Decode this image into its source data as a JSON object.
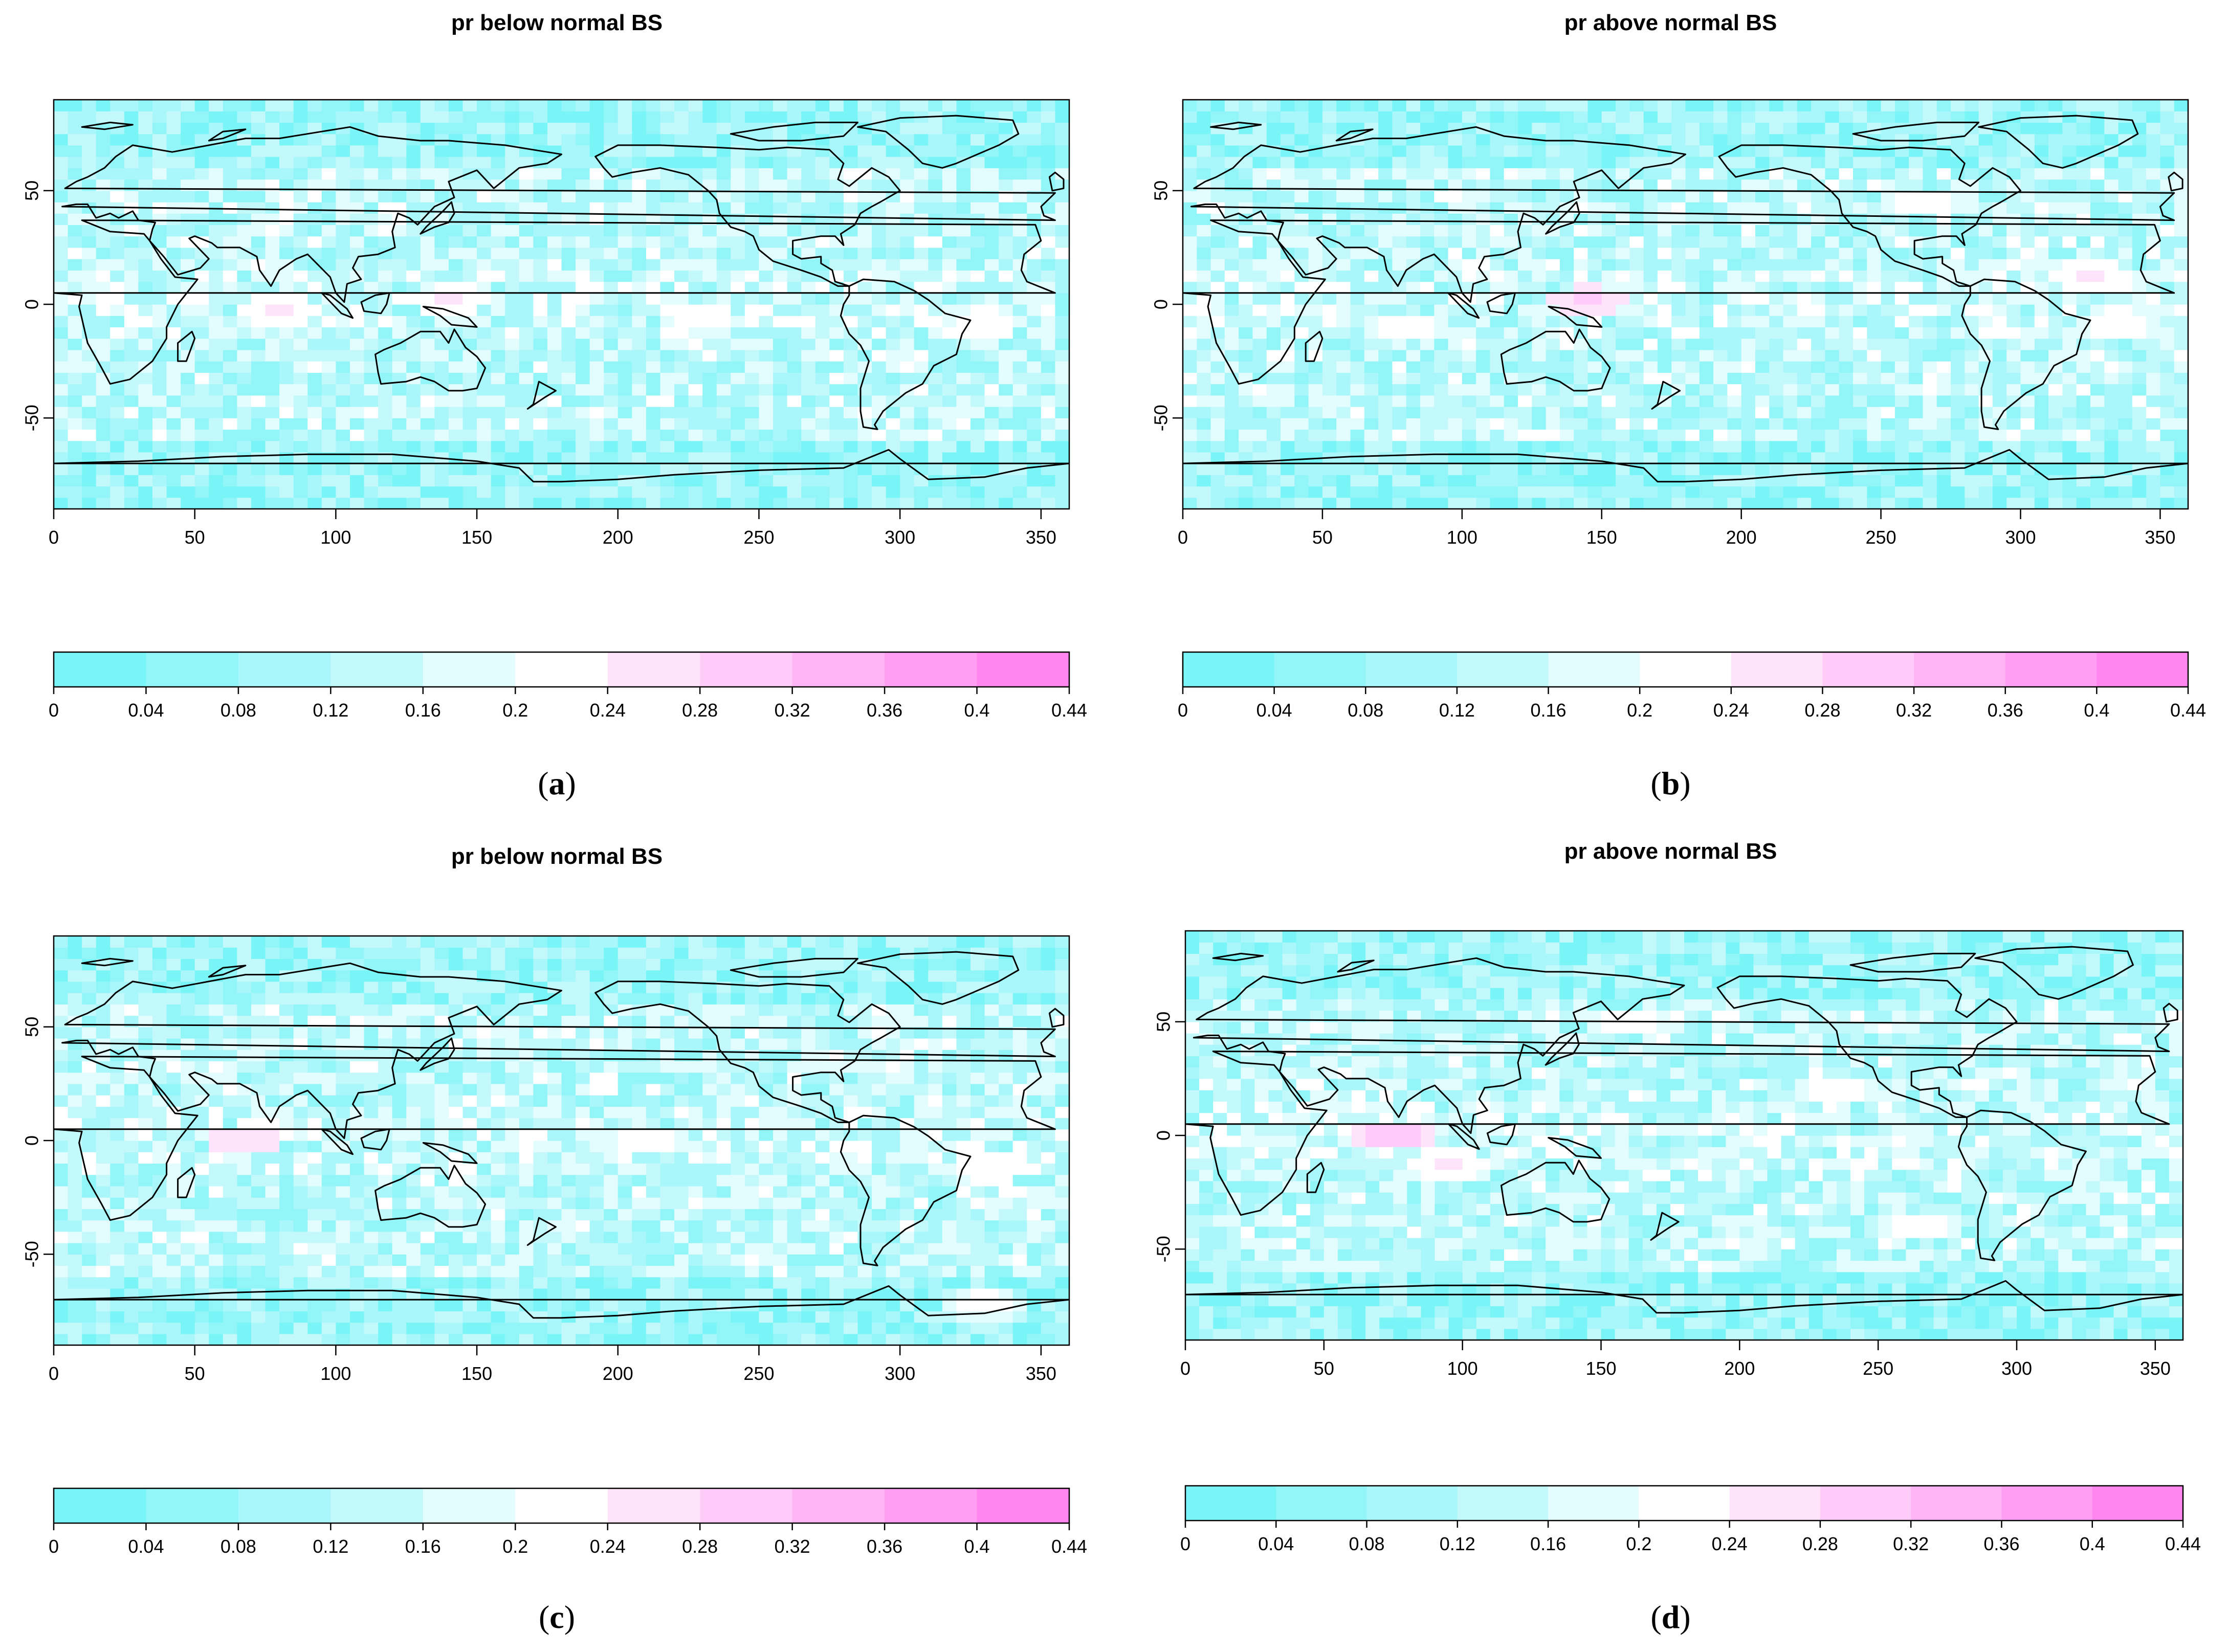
{
  "figure": {
    "colors": {
      "bins": [
        "#79f5f8",
        "#92f6f9",
        "#a9f7fa",
        "#c4f9fb",
        "#e3fcfd",
        "#ffffff",
        "#ffe3fb",
        "#ffcbf8",
        "#ffb4f5",
        "#ff9ef2",
        "#ff86ef"
      ],
      "coastline": "#000000",
      "frame": "#000000"
    }
  },
  "chart_data": [
    {
      "type": "heatmap",
      "panel_label": "a",
      "title": "pr below normal BS",
      "xlabel": "",
      "ylabel": "",
      "xlim": [
        0,
        360
      ],
      "ylim": [
        -90,
        90
      ],
      "x_ticks": [
        0,
        50,
        100,
        150,
        200,
        250,
        300,
        350
      ],
      "y_ticks": [
        -50,
        0,
        50
      ],
      "colorbar": {
        "breaks": [
          0,
          0.04,
          0.08,
          0.12,
          0.16,
          0.2,
          0.24,
          0.28,
          0.32,
          0.36,
          0.4,
          0.44
        ],
        "tick_labels": [
          "0",
          "0.04",
          "0.08",
          "0.12",
          "0.16",
          "0.2",
          "0.24",
          "0.28",
          "0.32",
          "0.36",
          "0.4",
          "0.44"
        ]
      },
      "features": [
        {
          "lon": 80,
          "lat": -3,
          "value": 0.27
        },
        {
          "lon": 140,
          "lat": 1,
          "value": 0.26
        },
        {
          "lon": 230,
          "lat": -6,
          "value": 0.25
        },
        {
          "lon": 330,
          "lat": -8,
          "value": 0.25
        }
      ]
    },
    {
      "type": "heatmap",
      "panel_label": "b",
      "title": "pr above normal BS",
      "xlabel": "",
      "ylabel": "",
      "xlim": [
        0,
        360
      ],
      "ylim": [
        -90,
        90
      ],
      "x_ticks": [
        0,
        50,
        100,
        150,
        200,
        250,
        300,
        350
      ],
      "y_ticks": [
        -50,
        0,
        50
      ],
      "colorbar": {
        "breaks": [
          0,
          0.04,
          0.08,
          0.12,
          0.16,
          0.2,
          0.24,
          0.28,
          0.32,
          0.36,
          0.4,
          0.44
        ],
        "tick_labels": [
          "0",
          "0.04",
          "0.08",
          "0.12",
          "0.16",
          "0.2",
          "0.24",
          "0.28",
          "0.32",
          "0.36",
          "0.4",
          "0.44"
        ]
      },
      "features": [
        {
          "lon": 145,
          "lat": 1,
          "value": 0.3
        },
        {
          "lon": 80,
          "lat": -10,
          "value": 0.25
        },
        {
          "lon": 325,
          "lat": 12,
          "value": 0.26
        },
        {
          "lon": 335,
          "lat": -8,
          "value": 0.25
        },
        {
          "lon": 265,
          "lat": 45,
          "value": 0.25
        }
      ]
    },
    {
      "type": "heatmap",
      "panel_label": "c",
      "title": "pr below normal BS",
      "xlabel": "",
      "ylabel": "",
      "xlim": [
        0,
        360
      ],
      "ylim": [
        -90,
        90
      ],
      "x_ticks": [
        0,
        50,
        100,
        150,
        200,
        250,
        300,
        350
      ],
      "y_ticks": [
        -50,
        0,
        50
      ],
      "colorbar": {
        "breaks": [
          0,
          0.04,
          0.08,
          0.12,
          0.16,
          0.2,
          0.24,
          0.28,
          0.32,
          0.36,
          0.4,
          0.44
        ],
        "tick_labels": [
          "0",
          "0.04",
          "0.08",
          "0.12",
          "0.16",
          "0.2",
          "0.24",
          "0.28",
          "0.32",
          "0.36",
          "0.4",
          "0.44"
        ]
      },
      "features": [
        {
          "lon": 68,
          "lat": 0,
          "value": 0.3
        },
        {
          "lon": 330,
          "lat": -12,
          "value": 0.25
        },
        {
          "lon": 210,
          "lat": 0,
          "value": 0.25
        },
        {
          "lon": 330,
          "lat": -72,
          "value": 0.24
        }
      ]
    },
    {
      "type": "heatmap",
      "panel_label": "d",
      "title": "pr above normal BS",
      "xlabel": "",
      "ylabel": "",
      "xlim": [
        0,
        360
      ],
      "ylim": [
        -90,
        90
      ],
      "x_ticks": [
        0,
        50,
        100,
        150,
        200,
        250,
        300,
        350
      ],
      "y_ticks": [
        -50,
        0,
        50
      ],
      "colorbar": {
        "breaks": [
          0,
          0.04,
          0.08,
          0.12,
          0.16,
          0.2,
          0.24,
          0.28,
          0.32,
          0.36,
          0.4,
          0.44
        ],
        "tick_labels": [
          "0",
          "0.04",
          "0.08",
          "0.12",
          "0.16",
          "0.2",
          "0.24",
          "0.28",
          "0.32",
          "0.36",
          "0.4",
          "0.44"
        ]
      },
      "features": [
        {
          "lon": 75,
          "lat": 0,
          "value": 0.32
        },
        {
          "lon": 95,
          "lat": -12,
          "value": 0.26
        },
        {
          "lon": 235,
          "lat": 20,
          "value": 0.25
        },
        {
          "lon": 160,
          "lat": 50,
          "value": 0.25
        },
        {
          "lon": 265,
          "lat": -40,
          "value": 0.25
        }
      ]
    }
  ]
}
